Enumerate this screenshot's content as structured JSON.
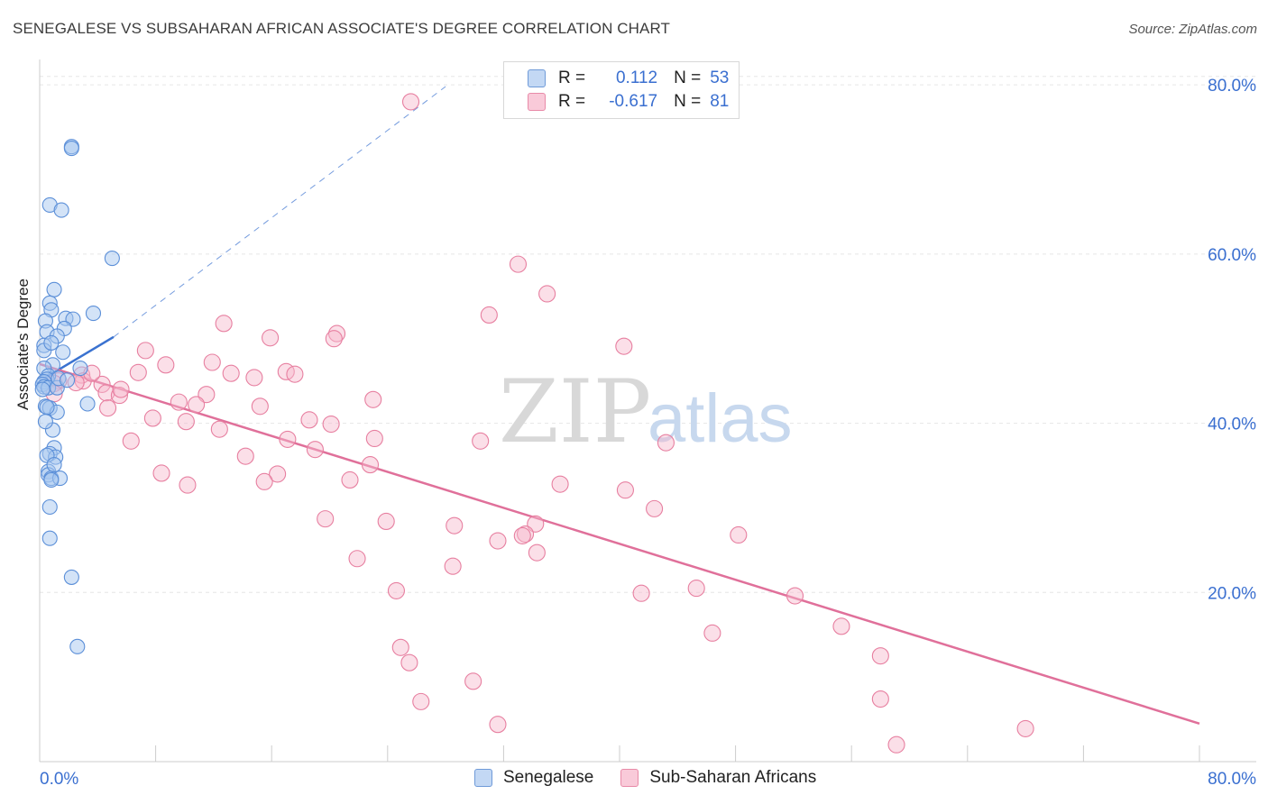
{
  "title": "SENEGALESE VS SUBSAHARAN AFRICAN ASSOCIATE'S DEGREE CORRELATION CHART",
  "source": "Source: ZipAtlas.com",
  "watermark": {
    "zip": "ZIP",
    "atlas": "atlas"
  },
  "legend": {
    "rows": [
      {
        "r_label": "R =",
        "r_value": "0.112",
        "n_label": "N =",
        "n_value": "53"
      },
      {
        "r_label": "R =",
        "r_value": "-0.617",
        "n_label": "N =",
        "n_value": "81"
      }
    ]
  },
  "bottom_legend": [
    "Senegalese",
    "Sub-Saharan Africans"
  ],
  "colors": {
    "senegalese_fill": "#a8c8f0",
    "senegalese_stroke": "#5b8fd8",
    "senegalese_line": "#3a72d0",
    "subsaharan_fill": "#f7b8cc",
    "subsaharan_stroke": "#e77fa0",
    "subsaharan_line": "#e0709a",
    "tick_label": "#3a6fd0",
    "grid": "#e6e6e6"
  },
  "chart_data": {
    "type": "scatter",
    "title": "SENEGALESE VS SUBSAHARAN AFRICAN ASSOCIATE'S DEGREE CORRELATION CHART",
    "xlabel": "",
    "ylabel": "Associate's Degree",
    "xlim": [
      0,
      80
    ],
    "ylim": [
      0,
      83
    ],
    "x_tick_labels": [
      "0.0%",
      "80.0%"
    ],
    "y_ticks": [
      20,
      40,
      60,
      80
    ],
    "y_tick_labels": [
      "20.0%",
      "40.0%",
      "60.0%",
      "80.0%"
    ],
    "grid": true,
    "legend_position": "top-center",
    "series": [
      {
        "name": "Senegalese",
        "r": 0.112,
        "n": 53,
        "trend_solid": [
          [
            0,
            45.0
          ],
          [
            5.1,
            50.2
          ]
        ],
        "trend_dashed": [
          [
            5.1,
            50.2
          ],
          [
            28.0,
            79.8
          ]
        ],
        "points": [
          [
            2.2,
            72.7
          ],
          [
            2.2,
            72.5
          ],
          [
            0.7,
            65.8
          ],
          [
            1.5,
            65.2
          ],
          [
            5.0,
            59.5
          ],
          [
            1.0,
            55.8
          ],
          [
            0.7,
            54.2
          ],
          [
            0.8,
            53.4
          ],
          [
            3.7,
            53.0
          ],
          [
            1.8,
            52.4
          ],
          [
            2.3,
            52.3
          ],
          [
            0.4,
            52.1
          ],
          [
            1.7,
            51.2
          ],
          [
            0.5,
            50.8
          ],
          [
            1.2,
            50.3
          ],
          [
            0.3,
            49.2
          ],
          [
            0.3,
            48.6
          ],
          [
            1.6,
            48.4
          ],
          [
            0.9,
            46.9
          ],
          [
            2.8,
            46.5
          ],
          [
            0.3,
            46.5
          ],
          [
            0.6,
            45.6
          ],
          [
            0.5,
            45.2
          ],
          [
            0.3,
            44.9
          ],
          [
            0.2,
            44.6
          ],
          [
            0.3,
            44.3
          ],
          [
            0.6,
            44.2
          ],
          [
            1.2,
            44.2
          ],
          [
            3.3,
            42.3
          ],
          [
            0.4,
            42.0
          ],
          [
            0.7,
            41.8
          ],
          [
            1.2,
            41.3
          ],
          [
            0.9,
            39.2
          ],
          [
            1.0,
            37.1
          ],
          [
            0.7,
            36.4
          ],
          [
            1.1,
            36.0
          ],
          [
            0.5,
            36.2
          ],
          [
            0.6,
            34.3
          ],
          [
            0.6,
            33.9
          ],
          [
            0.8,
            33.5
          ],
          [
            1.4,
            33.5
          ],
          [
            0.8,
            33.3
          ],
          [
            0.7,
            30.1
          ],
          [
            0.7,
            26.4
          ],
          [
            2.2,
            21.8
          ],
          [
            2.6,
            13.6
          ],
          [
            1.0,
            35.1
          ],
          [
            0.5,
            41.9
          ],
          [
            1.3,
            45.3
          ],
          [
            0.2,
            44.0
          ],
          [
            1.9,
            45.1
          ],
          [
            0.8,
            49.5
          ],
          [
            0.4,
            40.2
          ]
        ]
      },
      {
        "name": "Sub-Saharan Africans",
        "r": -0.617,
        "n": 81,
        "trend": [
          [
            0,
            47.0
          ],
          [
            80,
            4.5
          ]
        ],
        "points": [
          [
            25.6,
            78.0
          ],
          [
            33.0,
            58.8
          ],
          [
            35.0,
            55.3
          ],
          [
            31.0,
            52.8
          ],
          [
            12.7,
            51.8
          ],
          [
            20.5,
            50.6
          ],
          [
            20.3,
            50.0
          ],
          [
            15.9,
            50.1
          ],
          [
            40.3,
            49.1
          ],
          [
            7.3,
            48.6
          ],
          [
            11.9,
            47.2
          ],
          [
            8.7,
            46.9
          ],
          [
            17.0,
            46.1
          ],
          [
            17.6,
            45.8
          ],
          [
            6.8,
            46.0
          ],
          [
            13.2,
            45.9
          ],
          [
            14.8,
            45.4
          ],
          [
            2.9,
            45.7
          ],
          [
            3.0,
            45.0
          ],
          [
            2.5,
            44.8
          ],
          [
            1.3,
            45.0
          ],
          [
            1.0,
            44.7
          ],
          [
            4.3,
            44.6
          ],
          [
            4.6,
            43.6
          ],
          [
            5.5,
            43.3
          ],
          [
            11.5,
            43.4
          ],
          [
            9.6,
            42.5
          ],
          [
            10.8,
            42.2
          ],
          [
            15.2,
            42.0
          ],
          [
            4.7,
            41.8
          ],
          [
            23.0,
            42.8
          ],
          [
            7.8,
            40.6
          ],
          [
            10.1,
            40.2
          ],
          [
            18.6,
            40.4
          ],
          [
            20.1,
            39.9
          ],
          [
            12.4,
            39.3
          ],
          [
            17.1,
            38.1
          ],
          [
            23.1,
            38.2
          ],
          [
            30.4,
            37.9
          ],
          [
            43.2,
            37.7
          ],
          [
            6.3,
            37.9
          ],
          [
            19.0,
            36.9
          ],
          [
            14.2,
            36.1
          ],
          [
            22.8,
            35.1
          ],
          [
            8.4,
            34.1
          ],
          [
            16.4,
            34.0
          ],
          [
            15.5,
            33.1
          ],
          [
            21.4,
            33.3
          ],
          [
            10.2,
            32.7
          ],
          [
            35.9,
            32.8
          ],
          [
            40.4,
            32.1
          ],
          [
            42.4,
            29.9
          ],
          [
            19.7,
            28.7
          ],
          [
            23.9,
            28.4
          ],
          [
            28.6,
            27.9
          ],
          [
            34.2,
            28.1
          ],
          [
            33.5,
            26.9
          ],
          [
            33.3,
            26.7
          ],
          [
            48.2,
            26.8
          ],
          [
            31.6,
            26.1
          ],
          [
            34.3,
            24.7
          ],
          [
            21.9,
            24.0
          ],
          [
            28.5,
            23.1
          ],
          [
            24.6,
            20.2
          ],
          [
            45.3,
            20.5
          ],
          [
            52.1,
            19.6
          ],
          [
            41.5,
            19.9
          ],
          [
            55.3,
            16.0
          ],
          [
            46.4,
            15.2
          ],
          [
            24.9,
            13.5
          ],
          [
            25.5,
            11.7
          ],
          [
            58.0,
            12.5
          ],
          [
            29.9,
            9.5
          ],
          [
            26.3,
            7.1
          ],
          [
            58.0,
            7.4
          ],
          [
            31.6,
            4.4
          ],
          [
            68.0,
            3.9
          ],
          [
            59.1,
            2.0
          ],
          [
            1.0,
            43.5
          ],
          [
            3.6,
            45.9
          ],
          [
            5.6,
            44.0
          ]
        ]
      }
    ]
  }
}
